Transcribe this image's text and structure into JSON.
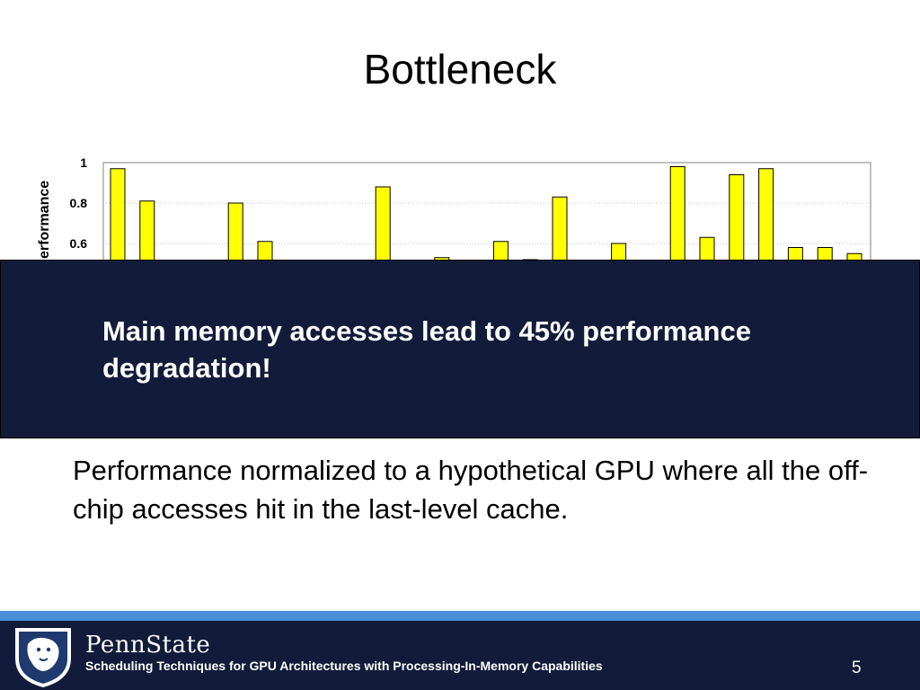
{
  "slide": {
    "title": "Bottleneck",
    "overlay_text": "Main memory accesses lead to 45% performance degradation!",
    "caption": "Performance normalized to a hypothetical GPU where all the off-chip accesses hit in the last-level cache.",
    "footer_brand": "PennState",
    "footer_text": "Scheduling Techniques for GPU Architectures with Processing-In-Memory Capabilities",
    "page_number": "5"
  },
  "colors": {
    "bar_fill": "#ffff00",
    "bar_stroke": "#000000",
    "overlay_bg": "#121c3a",
    "footer_bg": "#121c3a",
    "footer_stripe": "#4a90d9"
  },
  "chart_data": {
    "type": "bar",
    "ylabel_visible": "erformance",
    "ylim": [
      0,
      1
    ],
    "visible_range": [
      0.5,
      1.0
    ],
    "y_ticks": [
      "0.6",
      "0.8",
      "1"
    ],
    "grid": true,
    "values": [
      0.97,
      0.81,
      null,
      null,
      0.8,
      0.61,
      null,
      null,
      null,
      0.88,
      null,
      0.53,
      null,
      0.61,
      0.52,
      0.83,
      null,
      0.6,
      null,
      0.98,
      0.63,
      0.94,
      0.97,
      0.58,
      0.58,
      0.55
    ]
  }
}
